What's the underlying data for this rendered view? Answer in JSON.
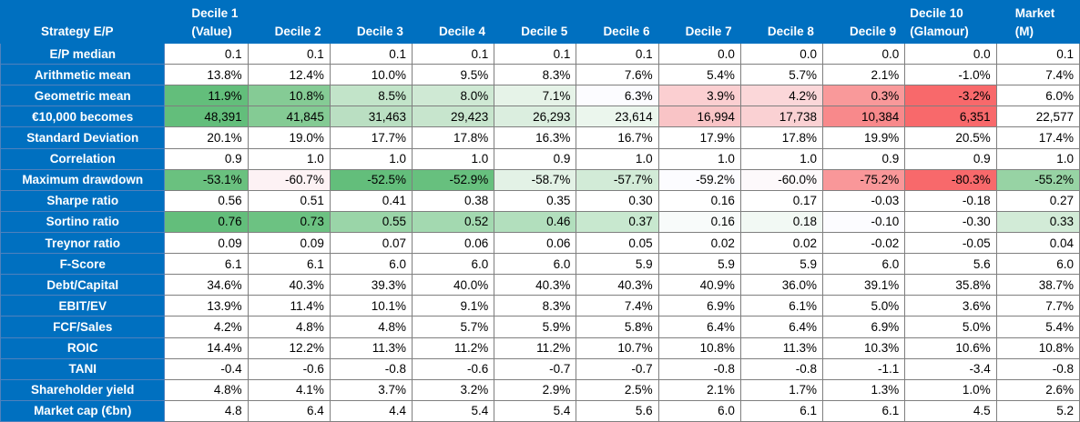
{
  "header": {
    "corner": "Strategy E/P",
    "columns": [
      "Decile 1\n(Value)",
      "Decile 2",
      "Decile 3",
      "Decile 4",
      "Decile 5",
      "Decile 6",
      "Decile 7",
      "Decile 8",
      "Decile 9",
      "Decile 10\n(Glamour)",
      "Market\n(M)"
    ]
  },
  "rows": [
    {
      "label": "E/P median",
      "values": [
        "0.1",
        "0.1",
        "0.1",
        "0.1",
        "0.1",
        "0.1",
        "0.0",
        "0.0",
        "0.0",
        "0.0",
        "0.1"
      ]
    },
    {
      "label": "Arithmetic mean",
      "values": [
        "13.8%",
        "12.4%",
        "10.0%",
        "9.5%",
        "8.3%",
        "7.6%",
        "5.4%",
        "5.7%",
        "2.1%",
        "-1.0%",
        "7.4%"
      ]
    },
    {
      "label": "Geometric mean",
      "values": [
        "11.9%",
        "10.8%",
        "8.5%",
        "8.0%",
        "7.1%",
        "6.3%",
        "3.9%",
        "4.2%",
        "0.3%",
        "-3.2%",
        "6.0%"
      ],
      "colors": [
        "#63be7b",
        "#85cb95",
        "#c2e4c9",
        "#cfe9d4",
        "#e6f3e8",
        "#fcfcff",
        "#fbcfd1",
        "#fbd7d9",
        "#f9999a",
        "#f8696b",
        "#ffffff"
      ]
    },
    {
      "label": "€10,000 becomes",
      "values": [
        "48,391",
        "41,845",
        "31,463",
        "29,423",
        "26,293",
        "23,614",
        "16,994",
        "17,738",
        "10,384",
        "6,351",
        "22,577"
      ],
      "colors": [
        "#63be7b",
        "#84cb94",
        "#badfc2",
        "#c7e5cd",
        "#dbeedf",
        "#ebf6ed",
        "#f9c4c6",
        "#fad1d3",
        "#f8898b",
        "#f8696b",
        "#ffffff"
      ]
    },
    {
      "label": "Standard Deviation",
      "values": [
        "20.1%",
        "19.0%",
        "17.7%",
        "17.8%",
        "16.3%",
        "16.7%",
        "17.9%",
        "17.8%",
        "19.9%",
        "20.5%",
        "17.4%"
      ]
    },
    {
      "label": "Correlation",
      "values": [
        "0.9",
        "1.0",
        "1.0",
        "1.0",
        "0.9",
        "1.0",
        "1.0",
        "1.0",
        "0.9",
        "0.9",
        "1.0"
      ]
    },
    {
      "label": "Maximum drawdown",
      "values": [
        "-53.1%",
        "-60.7%",
        "-52.5%",
        "-52.9%",
        "-58.7%",
        "-57.7%",
        "-59.2%",
        "-60.0%",
        "-75.2%",
        "-80.3%",
        "-55.2%"
      ],
      "colors": [
        "#6ac17f",
        "#fdf2f4",
        "#63be7b",
        "#67c07e",
        "#e3f2e6",
        "#d2ebd7",
        "#fcfcff",
        "#fdf9fb",
        "#f99799",
        "#f8696b",
        "#97d3a4"
      ]
    },
    {
      "label": "Sharpe ratio",
      "values": [
        "0.56",
        "0.51",
        "0.41",
        "0.38",
        "0.35",
        "0.30",
        "0.16",
        "0.17",
        "-0.03",
        "-0.18",
        "0.27"
      ]
    },
    {
      "label": "Sortino ratio",
      "values": [
        "0.76",
        "0.73",
        "0.55",
        "0.52",
        "0.46",
        "0.37",
        "0.16",
        "0.18",
        "-0.10",
        "-0.30",
        "0.33"
      ],
      "colors": [
        "#63be7b",
        "#6cc282",
        "#9ad5a8",
        "#a3d9b0",
        "#b2dfbd",
        "#c8e8cf",
        "#f8fbfa",
        "#f2f9f4",
        "#fcfcff",
        "#ffffff",
        "#d2ebd7"
      ]
    },
    {
      "label": "Treynor ratio",
      "values": [
        "0.09",
        "0.09",
        "0.07",
        "0.06",
        "0.06",
        "0.05",
        "0.02",
        "0.02",
        "-0.02",
        "-0.05",
        "0.04"
      ]
    },
    {
      "label": "F-Score",
      "values": [
        "6.1",
        "6.1",
        "6.0",
        "6.0",
        "6.0",
        "5.9",
        "5.9",
        "5.9",
        "6.0",
        "5.6",
        "6.0"
      ]
    },
    {
      "label": "Debt/Capital",
      "values": [
        "34.6%",
        "40.3%",
        "39.3%",
        "40.0%",
        "40.3%",
        "40.3%",
        "40.9%",
        "36.0%",
        "39.1%",
        "35.8%",
        "38.7%"
      ]
    },
    {
      "label": "EBIT/EV",
      "values": [
        "13.9%",
        "11.4%",
        "10.1%",
        "9.1%",
        "8.3%",
        "7.4%",
        "6.9%",
        "6.1%",
        "5.0%",
        "3.6%",
        "7.7%"
      ]
    },
    {
      "label": "FCF/Sales",
      "values": [
        "4.2%",
        "4.8%",
        "4.8%",
        "5.7%",
        "5.9%",
        "5.8%",
        "6.4%",
        "6.4%",
        "6.9%",
        "5.0%",
        "5.4%"
      ]
    },
    {
      "label": "ROIC",
      "values": [
        "14.4%",
        "12.2%",
        "11.3%",
        "11.2%",
        "11.2%",
        "10.7%",
        "10.8%",
        "11.3%",
        "10.3%",
        "10.6%",
        "10.8%"
      ]
    },
    {
      "label": "TANI",
      "values": [
        "-0.4",
        "-0.6",
        "-0.8",
        "-0.6",
        "-0.7",
        "-0.7",
        "-0.8",
        "-0.8",
        "-1.1",
        "-3.4",
        "-0.8"
      ]
    },
    {
      "label": "Shareholder yield",
      "values": [
        "4.8%",
        "4.1%",
        "3.7%",
        "3.2%",
        "2.9%",
        "2.5%",
        "2.1%",
        "1.7%",
        "1.3%",
        "1.0%",
        "2.6%"
      ]
    },
    {
      "label": "Market cap (€bn)",
      "values": [
        "4.8",
        "6.4",
        "4.4",
        "5.4",
        "5.4",
        "5.6",
        "6.0",
        "6.1",
        "6.1",
        "4.5",
        "5.2"
      ]
    }
  ]
}
